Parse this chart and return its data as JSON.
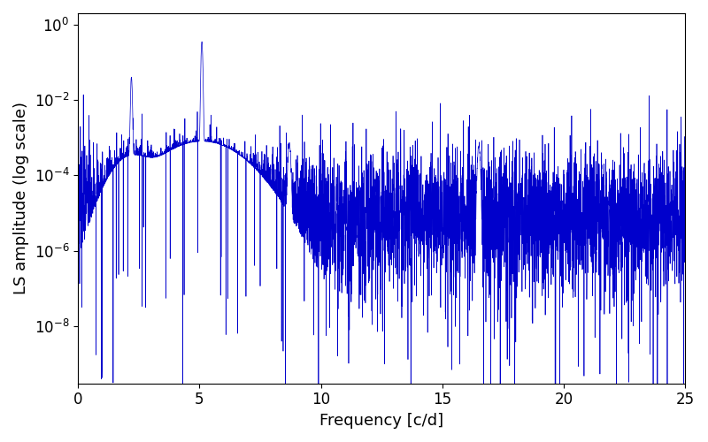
{
  "xlabel": "Frequency [c/d]",
  "ylabel": "LS amplitude (log scale)",
  "xlim": [
    0,
    25
  ],
  "ylim": [
    3e-10,
    2
  ],
  "line_color": "#0000cc",
  "line_width": 0.5,
  "background_color": "#ffffff",
  "freq_min": 0.0,
  "freq_max": 25.0,
  "n_points": 5000,
  "seed": 7,
  "main_peak_freq": 5.1,
  "main_peak_amp": 0.35,
  "secondary_peak_freq": 2.2,
  "secondary_peak_amp": 0.04,
  "base_noise_level": 1.2e-05,
  "tick_fontsize": 12,
  "label_fontsize": 13
}
